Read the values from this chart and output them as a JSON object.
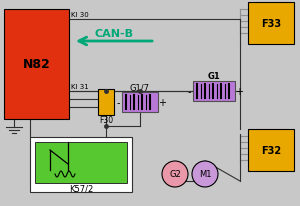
{
  "bg_color": "#c8c8c8",
  "N82_color": "#e03010",
  "N82_label": "N82",
  "F33_color": "#e8a800",
  "F33_label": "F33",
  "F32_color": "#e8a800",
  "F32_label": "F32",
  "F30_color": "#e8a800",
  "F30_label": "F30",
  "G1_color": "#b878d8",
  "G1_label": "G1",
  "G17_color": "#b878d8",
  "G17_label": "G1/7",
  "K572_color": "#58c830",
  "K572_label": "K57/2",
  "G2_color": "#e898a8",
  "G2_label": "G2",
  "M1_color": "#c898d8",
  "M1_label": "M1",
  "CANB_label": "CAN-B",
  "KI30_label": "KI 30",
  "KI31_label": "KI 31",
  "wire_color": "#303030",
  "connector_color": "#909090",
  "arrow_color": "#00a878"
}
